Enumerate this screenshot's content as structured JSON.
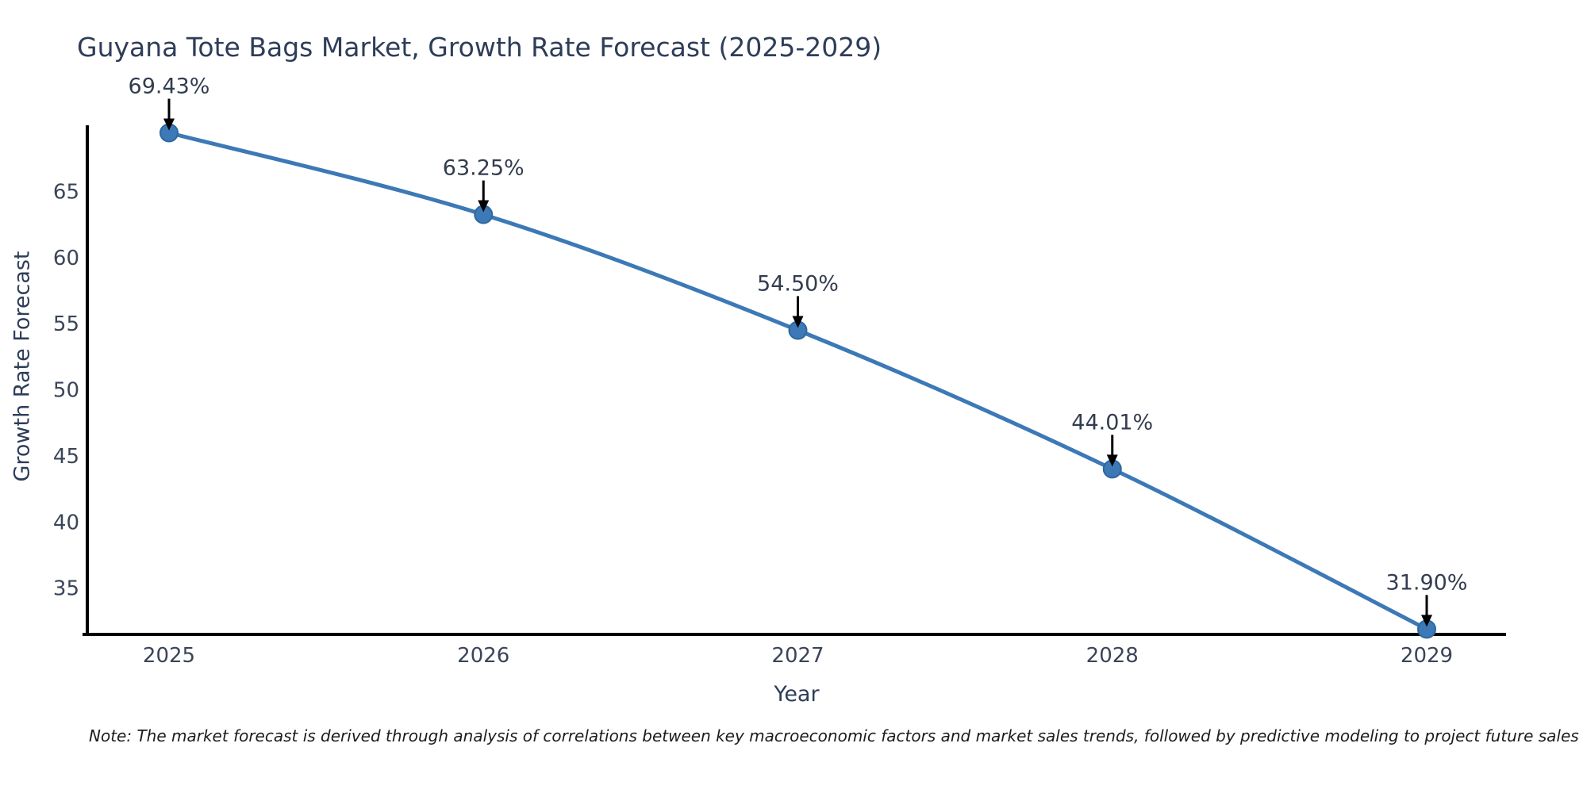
{
  "title": "Guyana Tote Bags Market, Growth Rate Forecast (2025-2029)",
  "note": "Note: The market forecast is derived through analysis of correlations between key macroeconomic factors and market sales trends, followed by predictive modeling to project future sales",
  "chart_data": {
    "type": "line",
    "title": "Guyana Tote Bags Market, Growth Rate Forecast (2025-2029)",
    "xlabel": "Year",
    "ylabel": "Growth Rate Forecast",
    "categories": [
      "2025",
      "2026",
      "2027",
      "2028",
      "2029"
    ],
    "values": [
      69.43,
      63.25,
      54.5,
      44.01,
      31.9
    ],
    "point_labels": [
      "69.43%",
      "63.25%",
      "54.50%",
      "44.01%",
      "31.90%"
    ],
    "yticks": [
      35,
      40,
      45,
      50,
      55,
      60,
      65
    ],
    "ylim": [
      31.5,
      70.0
    ],
    "grid": false,
    "legend": "none",
    "smooth": true,
    "line_color": "#3c79b6",
    "marker_color": "#3c79b6",
    "marker_edge_color": "#2d689f",
    "axis_color": "#000000",
    "tick_color": "#3b4559",
    "label_color": "#333d4f",
    "annotation_arrow_color": "#000000"
  }
}
